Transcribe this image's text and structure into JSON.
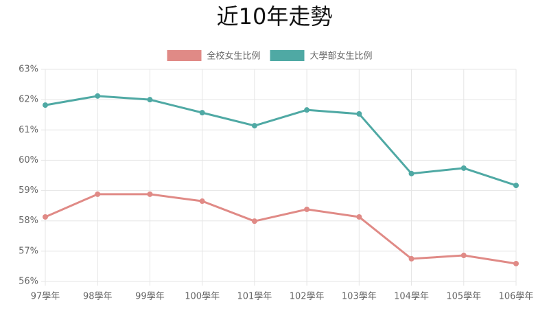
{
  "chart_data": {
    "type": "line",
    "title": "近10年走勢",
    "categories": [
      "97學年",
      "98學年",
      "99學年",
      "100學年",
      "101學年",
      "102學年",
      "103學年",
      "104學年",
      "105學年",
      "106學年"
    ],
    "series": [
      {
        "name": "全校女生比例",
        "color": "#e08a86",
        "values": [
          58.13,
          58.88,
          58.88,
          58.65,
          57.99,
          58.38,
          58.13,
          56.75,
          56.86,
          56.59
        ]
      },
      {
        "name": "大學部女生比例",
        "color": "#4fa9a4",
        "values": [
          61.82,
          62.12,
          62.0,
          61.57,
          61.14,
          61.66,
          61.53,
          59.56,
          59.74,
          59.17
        ]
      }
    ],
    "ylim": [
      56,
      63
    ],
    "yticks": [
      {
        "value": 56,
        "label": "56%"
      },
      {
        "value": 57,
        "label": "57%"
      },
      {
        "value": 58,
        "label": "58%"
      },
      {
        "value": 59,
        "label": "59%"
      },
      {
        "value": 60,
        "label": "60%"
      },
      {
        "value": 61,
        "label": "61%"
      },
      {
        "value": 62,
        "label": "62%"
      },
      {
        "value": 63,
        "label": "63%"
      }
    ],
    "grid": true
  }
}
